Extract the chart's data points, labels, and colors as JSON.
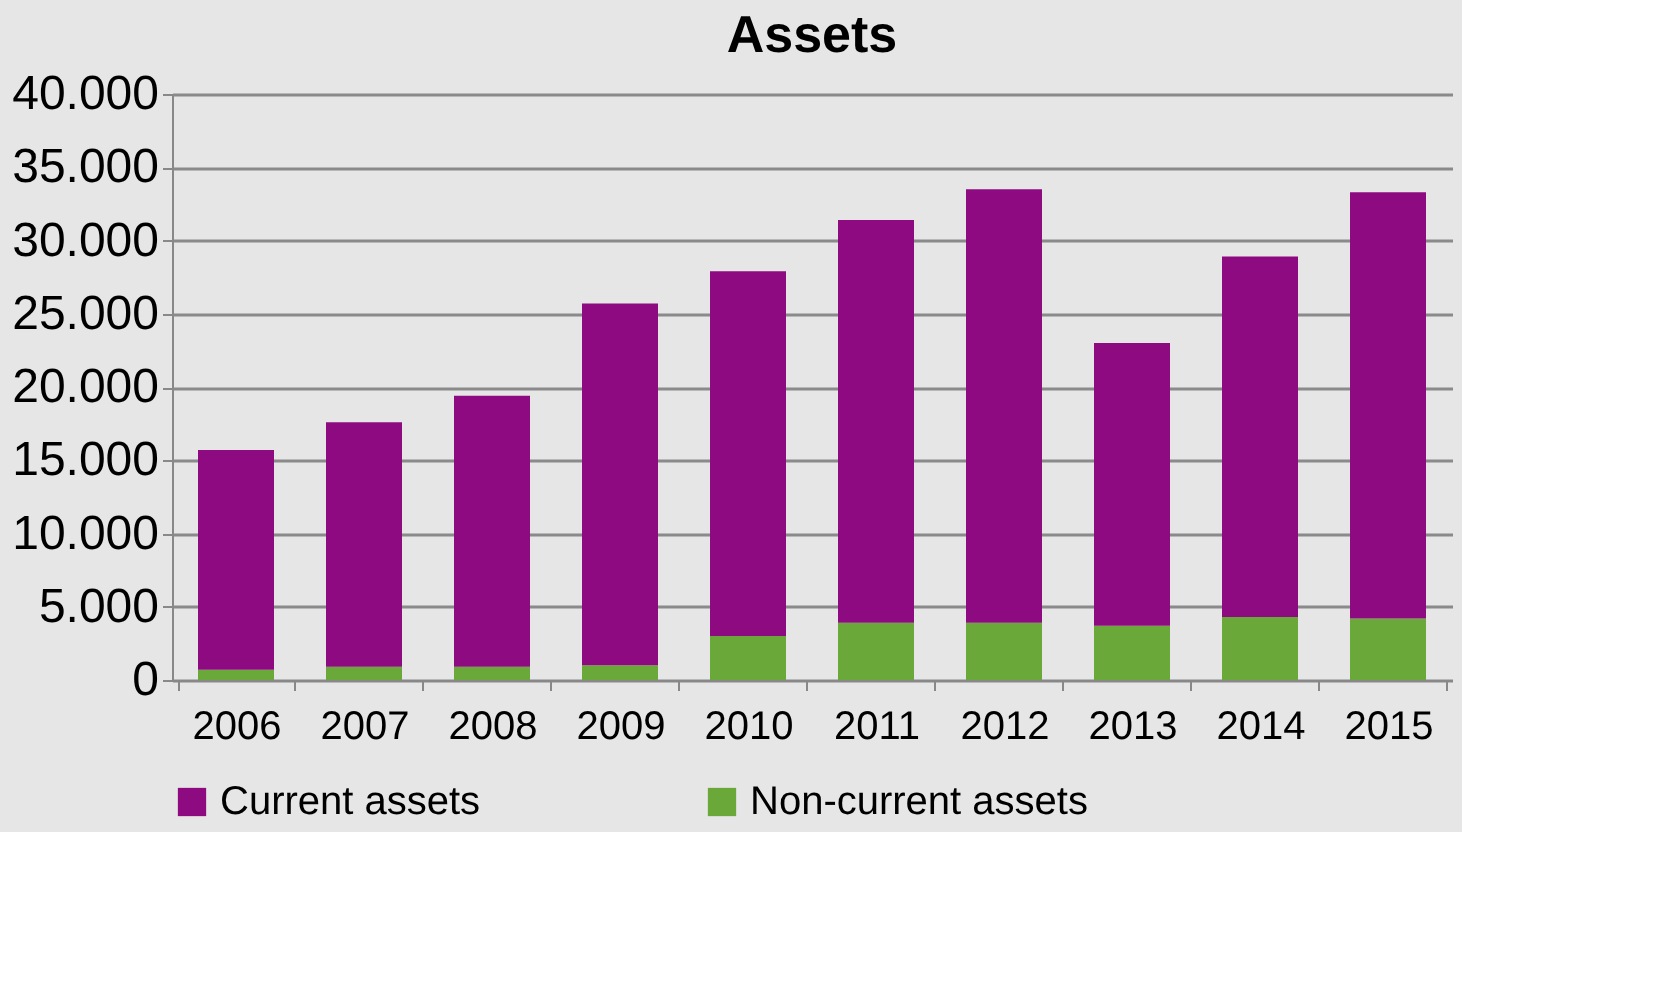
{
  "chart_data": {
    "type": "bar",
    "title": "Assets",
    "stacked": true,
    "categories": [
      "2006",
      "2007",
      "2008",
      "2009",
      "2010",
      "2011",
      "2012",
      "2013",
      "2014",
      "2015"
    ],
    "series": [
      {
        "name": "Non-current assets",
        "color": "#6aa83a",
        "values": [
          700,
          900,
          900,
          1000,
          3000,
          3900,
          3900,
          3700,
          4300,
          4200
        ]
      },
      {
        "name": "Current assets",
        "color": "#8e0a80",
        "values": [
          15000,
          16700,
          18500,
          24700,
          24900,
          27500,
          29600,
          19300,
          24600,
          29100
        ]
      }
    ],
    "ylim": [
      0,
      40000
    ],
    "yticks": [
      0,
      {
        "value": 5000,
        "label": "5.000"
      },
      {
        "value": 10000,
        "label": "10.000"
      },
      {
        "value": 15000,
        "label": "15.000"
      },
      {
        "value": 20000,
        "label": "20.000"
      },
      {
        "value": 25000,
        "label": "25.000"
      },
      {
        "value": 30000,
        "label": "30.000"
      },
      {
        "value": 35000,
        "label": "35.000"
      },
      {
        "value": 40000,
        "label": "40.000"
      }
    ],
    "grid": "y",
    "legend": "bottom"
  }
}
